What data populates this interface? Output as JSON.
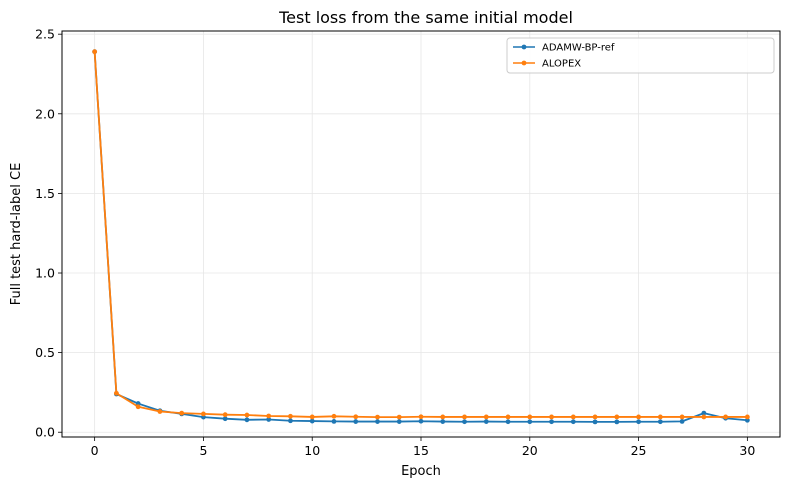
{
  "chart_data": {
    "type": "line",
    "title": "Test loss from the same initial model",
    "xlabel": "Epoch",
    "ylabel": "Full test hard-label CE",
    "xlim": [
      -1.5,
      31.5
    ],
    "ylim": [
      -0.03,
      2.52
    ],
    "xticks": [
      0,
      5,
      10,
      15,
      20,
      25,
      30
    ],
    "xtick_labels": [
      "0",
      "5",
      "10",
      "15",
      "20",
      "25",
      "30"
    ],
    "yticks": [
      0.0,
      0.5,
      1.0,
      1.5,
      2.0,
      2.5
    ],
    "ytick_labels": [
      "0.0",
      "0.5",
      "1.0",
      "1.5",
      "2.0",
      "2.5"
    ],
    "grid": true,
    "legend_position": "top-right",
    "x": [
      0,
      1,
      2,
      3,
      4,
      5,
      6,
      7,
      8,
      9,
      10,
      11,
      12,
      13,
      14,
      15,
      16,
      17,
      18,
      19,
      20,
      21,
      22,
      23,
      24,
      25,
      26,
      27,
      28,
      29,
      30
    ],
    "series": [
      {
        "name": "ADAMW-BP-ref",
        "color": "#1f77b4",
        "values": [
          2.39,
          0.24,
          0.18,
          0.135,
          0.115,
          0.095,
          0.085,
          0.078,
          0.08,
          0.072,
          0.07,
          0.068,
          0.067,
          0.067,
          0.067,
          0.069,
          0.067,
          0.066,
          0.067,
          0.066,
          0.066,
          0.066,
          0.066,
          0.065,
          0.065,
          0.066,
          0.066,
          0.068,
          0.12,
          0.088,
          0.075
        ]
      },
      {
        "name": "ALOPEX",
        "color": "#ff7f0e",
        "values": [
          2.39,
          0.245,
          0.16,
          0.13,
          0.12,
          0.115,
          0.11,
          0.108,
          0.102,
          0.1,
          0.096,
          0.1,
          0.097,
          0.095,
          0.095,
          0.097,
          0.096,
          0.096,
          0.096,
          0.096,
          0.096,
          0.096,
          0.096,
          0.096,
          0.096,
          0.096,
          0.096,
          0.096,
          0.096,
          0.096,
          0.096
        ]
      }
    ]
  }
}
